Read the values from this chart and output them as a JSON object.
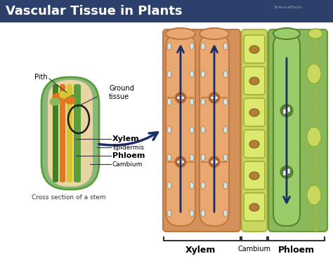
{
  "title": "Vascular Tissue in Plants",
  "title_bg": "#2d3f6b",
  "title_color": "#ffffff",
  "bg_color": "#ffffff",
  "arrow_color": "#1a2d6b",
  "labels": {
    "pith": "Pith",
    "ground_tissue": "Ground\ntissue",
    "xylem": "Xylem",
    "epidermis": "Epidermis",
    "phloem": "Phloem",
    "cambium": "Cambium",
    "cross_section": "Cross section of a stem",
    "xylem_bottom": "Xylem",
    "cambium_bottom": "Cambium",
    "phloem_bottom": "Phloem"
  }
}
